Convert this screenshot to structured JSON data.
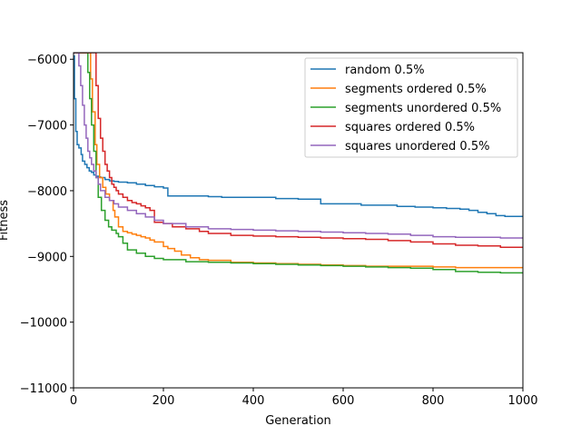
{
  "chart_data": {
    "type": "line",
    "title": "",
    "xlabel": "Generation",
    "ylabel": "Fitness",
    "xlim": [
      0,
      1000
    ],
    "ylim": [
      -11000,
      -5900
    ],
    "xticks": [
      0,
      200,
      400,
      600,
      800,
      1000
    ],
    "xtick_labels": [
      "0",
      "200",
      "400",
      "600",
      "800",
      "1000"
    ],
    "yticks": [
      -11000,
      -10000,
      -9000,
      -8000,
      -7000,
      -6000
    ],
    "ytick_labels": [
      "−11000",
      "−10000",
      "−9000",
      "−8000",
      "−7000",
      "−6000"
    ],
    "grid": false,
    "legend_position": "top-right",
    "series": [
      {
        "name": "random 0.5%",
        "color": "#1f77b4",
        "x": [
          0,
          2,
          5,
          8,
          12,
          17,
          20,
          25,
          30,
          35,
          40,
          45,
          50,
          55,
          60,
          70,
          80,
          90,
          100,
          120,
          140,
          160,
          180,
          200,
          210,
          250,
          300,
          330,
          400,
          450,
          500,
          550,
          600,
          640,
          680,
          720,
          760,
          800,
          830,
          860,
          880,
          900,
          920,
          940,
          960,
          1000
        ],
        "y": [
          -5950,
          -6600,
          -7100,
          -7300,
          -7350,
          -7450,
          -7550,
          -7600,
          -7650,
          -7700,
          -7720,
          -7760,
          -7780,
          -7790,
          -7800,
          -7830,
          -7850,
          -7860,
          -7870,
          -7880,
          -7900,
          -7920,
          -7940,
          -7960,
          -8080,
          -8080,
          -8090,
          -8100,
          -8100,
          -8120,
          -8130,
          -8200,
          -8200,
          -8220,
          -8220,
          -8240,
          -8250,
          -8260,
          -8270,
          -8280,
          -8300,
          -8330,
          -8350,
          -8380,
          -8390,
          -8390
        ]
      },
      {
        "name": "segments ordered 0.5%",
        "color": "#ff7f0e",
        "x": [
          0,
          33,
          38,
          42,
          48,
          52,
          58,
          65,
          72,
          80,
          88,
          92,
          100,
          110,
          120,
          130,
          140,
          150,
          160,
          170,
          180,
          200,
          210,
          225,
          240,
          260,
          280,
          300,
          350,
          400,
          450,
          500,
          550,
          600,
          650,
          700,
          750,
          800,
          850,
          1000
        ],
        "y": [
          -5900,
          -5900,
          -6300,
          -6800,
          -7300,
          -7600,
          -7800,
          -7950,
          -8050,
          -8150,
          -8300,
          -8400,
          -8550,
          -8620,
          -8640,
          -8660,
          -8680,
          -8700,
          -8720,
          -8750,
          -8780,
          -8850,
          -8880,
          -8920,
          -8980,
          -9020,
          -9050,
          -9060,
          -9090,
          -9100,
          -9110,
          -9120,
          -9130,
          -9140,
          -9150,
          -9150,
          -9150,
          -9160,
          -9170,
          -9170
        ]
      },
      {
        "name": "segments unordered 0.5%",
        "color": "#2ca02c",
        "x": [
          0,
          28,
          32,
          36,
          40,
          45,
          50,
          55,
          62,
          70,
          78,
          85,
          95,
          100,
          110,
          120,
          140,
          160,
          180,
          200,
          250,
          300,
          350,
          400,
          450,
          500,
          550,
          600,
          650,
          700,
          750,
          800,
          850,
          900,
          950,
          1000
        ],
        "y": [
          -5900,
          -5900,
          -6200,
          -6600,
          -7000,
          -7400,
          -7800,
          -8100,
          -8300,
          -8450,
          -8550,
          -8600,
          -8650,
          -8700,
          -8800,
          -8900,
          -8950,
          -9000,
          -9030,
          -9050,
          -9080,
          -9090,
          -9100,
          -9110,
          -9120,
          -9130,
          -9140,
          -9150,
          -9160,
          -9170,
          -9180,
          -9200,
          -9230,
          -9240,
          -9250,
          -9260
        ]
      },
      {
        "name": "squares ordered 0.5%",
        "color": "#d62728",
        "x": [
          0,
          45,
          50,
          55,
          60,
          65,
          70,
          75,
          80,
          85,
          90,
          95,
          100,
          110,
          120,
          130,
          140,
          150,
          160,
          170,
          180,
          200,
          220,
          250,
          280,
          300,
          350,
          400,
          450,
          500,
          550,
          600,
          650,
          700,
          750,
          800,
          850,
          900,
          950,
          1000
        ],
        "y": [
          -5900,
          -5900,
          -6400,
          -6900,
          -7200,
          -7400,
          -7600,
          -7700,
          -7800,
          -7900,
          -7950,
          -8000,
          -8050,
          -8100,
          -8150,
          -8180,
          -8200,
          -8230,
          -8260,
          -8300,
          -8480,
          -8500,
          -8550,
          -8580,
          -8620,
          -8650,
          -8680,
          -8690,
          -8700,
          -8710,
          -8720,
          -8730,
          -8740,
          -8760,
          -8780,
          -8810,
          -8830,
          -8840,
          -8860,
          -8860
        ]
      },
      {
        "name": "squares unordered 0.5%",
        "color": "#9467bd",
        "x": [
          0,
          8,
          12,
          16,
          20,
          24,
          28,
          32,
          36,
          40,
          45,
          50,
          55,
          60,
          70,
          80,
          90,
          100,
          120,
          140,
          160,
          180,
          200,
          250,
          300,
          350,
          400,
          450,
          500,
          550,
          600,
          650,
          700,
          750,
          800,
          850,
          900,
          950,
          1000
        ],
        "y": [
          -5900,
          -5900,
          -6100,
          -6400,
          -6700,
          -7000,
          -7200,
          -7400,
          -7500,
          -7600,
          -7700,
          -7800,
          -7900,
          -8000,
          -8100,
          -8150,
          -8200,
          -8250,
          -8300,
          -8350,
          -8400,
          -8450,
          -8500,
          -8550,
          -8580,
          -8590,
          -8600,
          -8610,
          -8620,
          -8630,
          -8640,
          -8650,
          -8660,
          -8680,
          -8700,
          -8710,
          -8710,
          -8720,
          -8720
        ]
      }
    ]
  }
}
